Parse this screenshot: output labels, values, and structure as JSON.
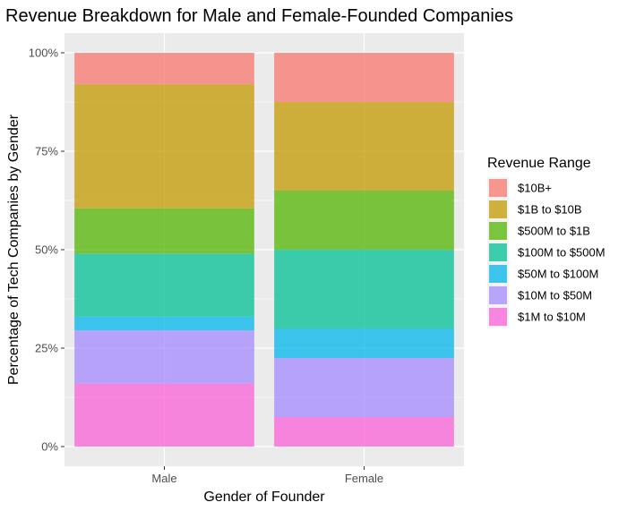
{
  "chart_data": {
    "type": "bar",
    "stacked": true,
    "title": "Revenue Breakdown for Male and Female-Founded Companies",
    "xlabel": "Gender of Founder",
    "ylabel": "Percentage of Tech Companies by Gender",
    "ylim": [
      0,
      1
    ],
    "yticks": [
      {
        "value": 0,
        "label": "0%"
      },
      {
        "value": 0.25,
        "label": "25%"
      },
      {
        "value": 0.5,
        "label": "50%"
      },
      {
        "value": 0.75,
        "label": "75%"
      },
      {
        "value": 1,
        "label": "100%"
      }
    ],
    "categories": [
      "Male",
      "Female"
    ],
    "legend_title": "Revenue Range",
    "legend_position": "right",
    "series": [
      {
        "name": "$10B+",
        "color": "#F8766D",
        "values": [
          0.08,
          0.125
        ]
      },
      {
        "name": "$1B to $10B",
        "color": "#C49A00",
        "values": [
          0.315,
          0.225
        ]
      },
      {
        "name": "$500M to $1B",
        "color": "#53B400",
        "values": [
          0.115,
          0.15
        ]
      },
      {
        "name": "$100M to $500M",
        "color": "#00C094",
        "values": [
          0.16,
          0.2
        ]
      },
      {
        "name": "$50M to $100M",
        "color": "#00B6EB",
        "values": [
          0.035,
          0.075
        ]
      },
      {
        "name": "$10M to $50M",
        "color": "#A58AFF",
        "values": [
          0.135,
          0.15
        ]
      },
      {
        "name": "$1M to $10M",
        "color": "#FB61D7",
        "values": [
          0.16,
          0.075
        ]
      }
    ],
    "panel_background": "#EBEBEB",
    "grid": true
  }
}
